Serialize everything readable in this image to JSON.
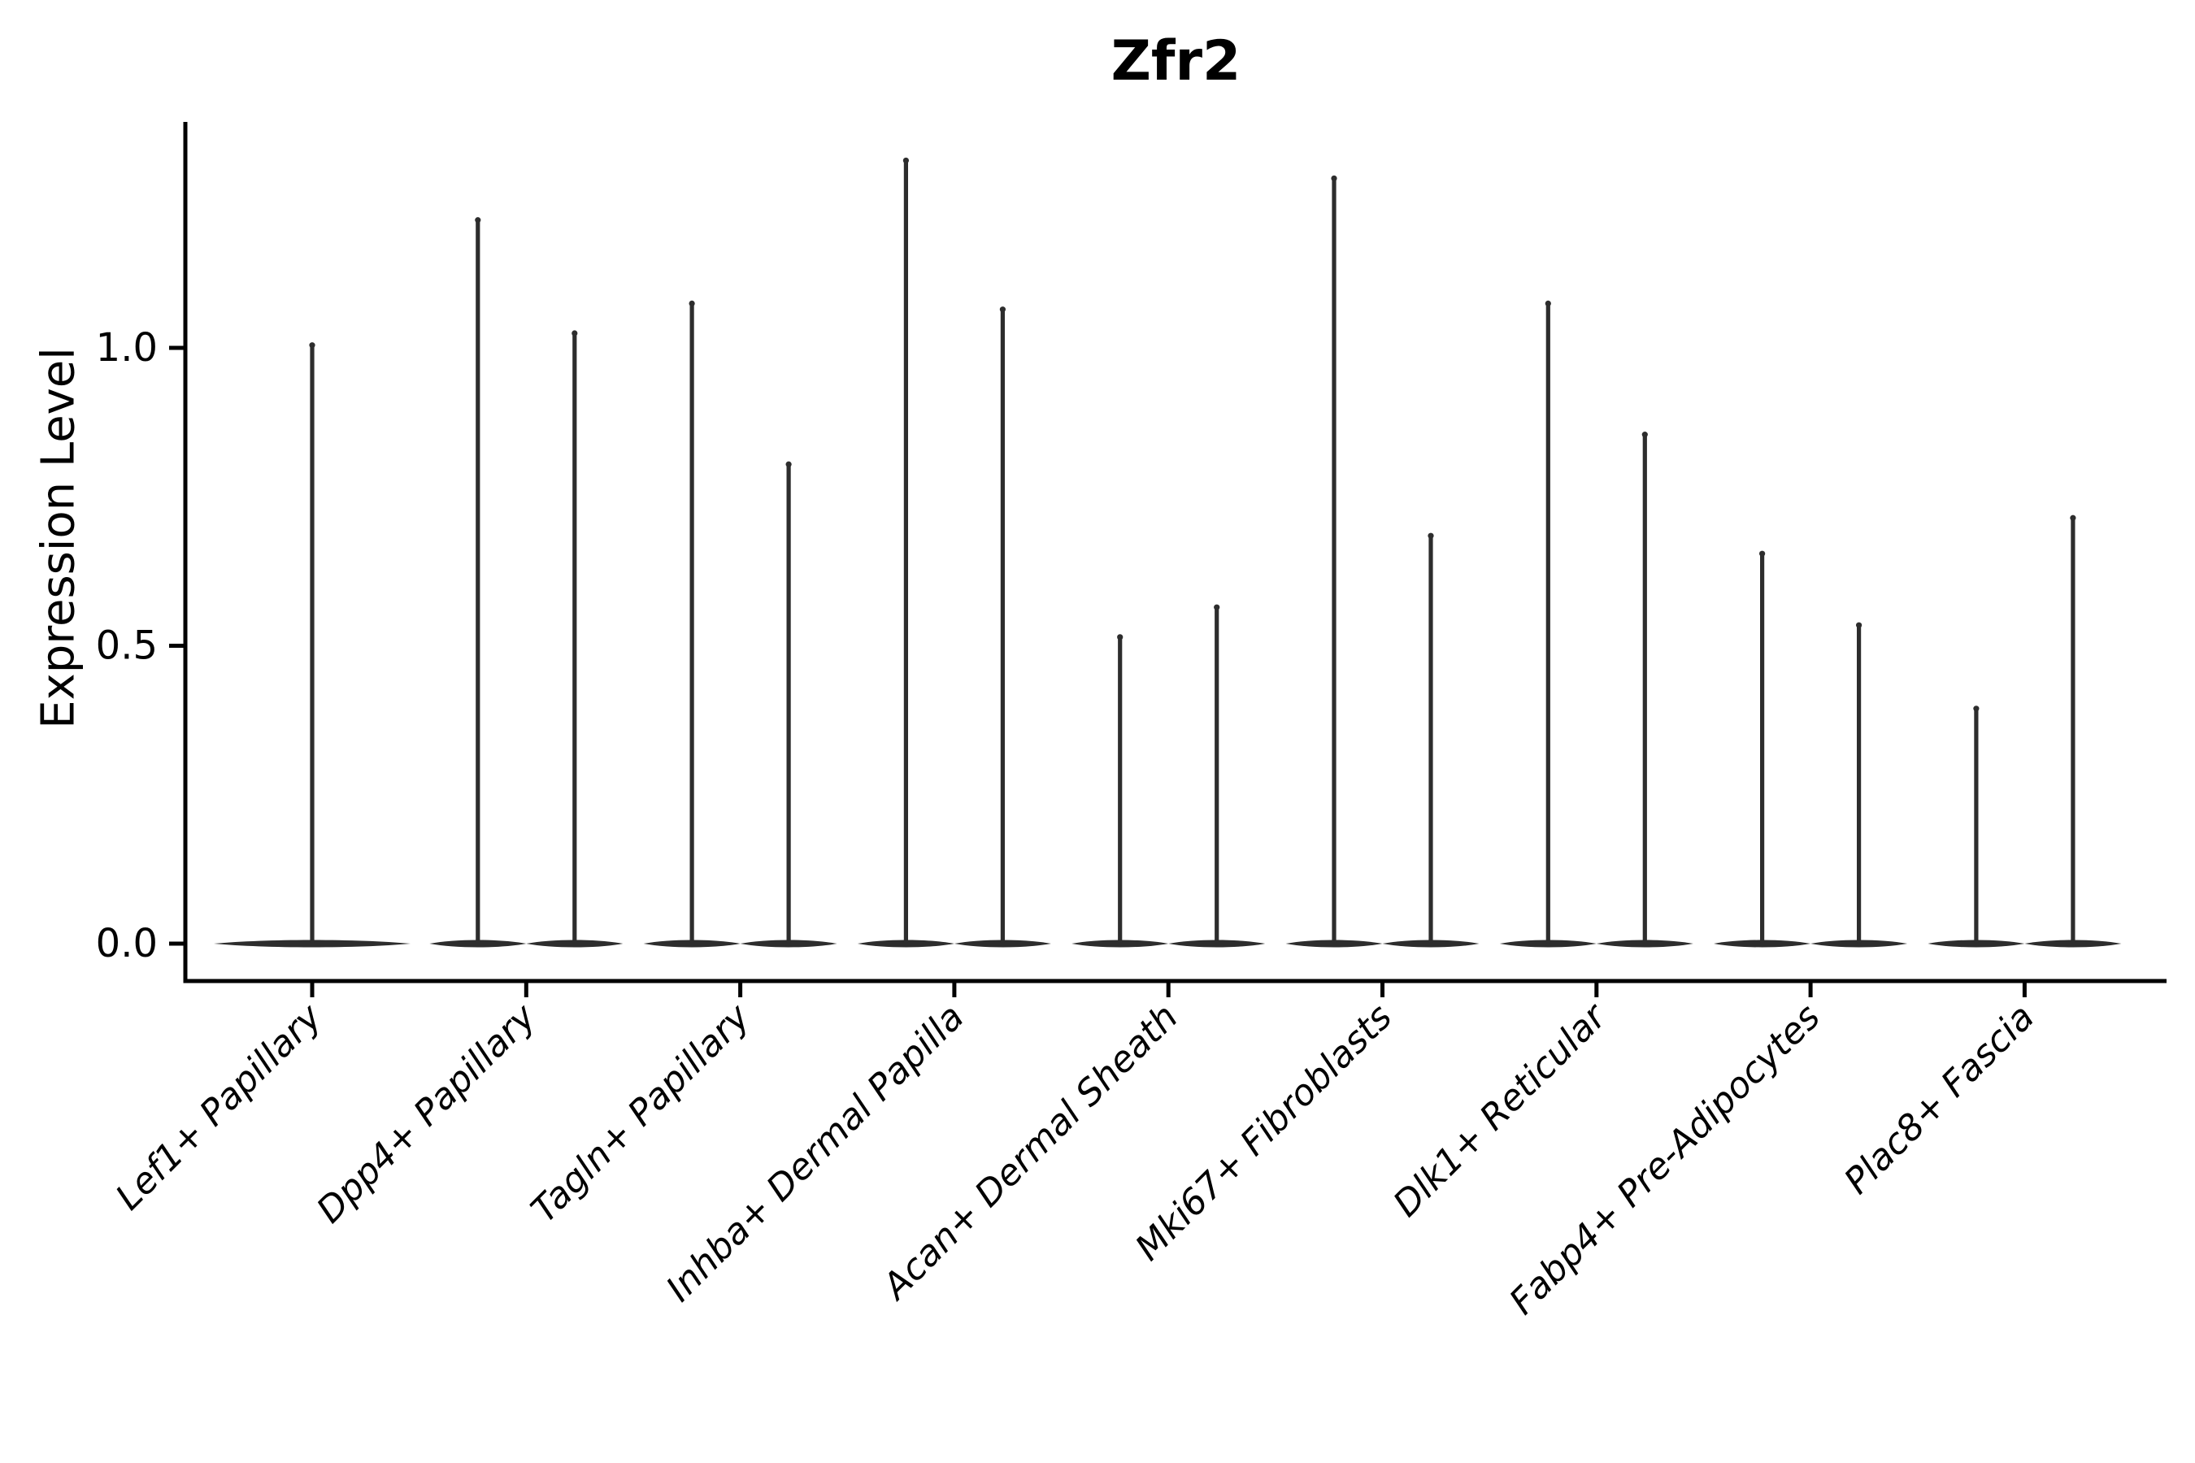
{
  "chart_data": {
    "type": "violin",
    "title": "Zfr2",
    "ylabel": "Expression Level",
    "xlabel": "",
    "yticks": [
      "0.0",
      "0.5",
      "1.0"
    ],
    "ylim": [
      0,
      1.38
    ],
    "grid": false,
    "legend": "none",
    "categories": [
      "Lef1+ Papillary",
      "Dpp4+ Papillary",
      "Tagln+ Papillary",
      "Inhba+ Dermal Papilla",
      "Acan+ Dermal Sheath",
      "Mki67+ Fibroblasts",
      "Dlk1+ Reticular",
      "Fabp4+ Pre-Adipocytes",
      "Plac8+ Fascia"
    ],
    "violins": [
      {
        "category": "Lef1+ Papillary",
        "maxima": [
          1.01
        ]
      },
      {
        "category": "Dpp4+ Papillary",
        "maxima": [
          1.22,
          1.03
        ]
      },
      {
        "category": "Tagln+ Papillary",
        "maxima": [
          1.08,
          0.81
        ]
      },
      {
        "category": "Inhba+ Dermal Papilla",
        "maxima": [
          1.32,
          1.07
        ]
      },
      {
        "category": "Acan+ Dermal Sheath",
        "maxima": [
          0.52,
          0.57
        ]
      },
      {
        "category": "Mki67+ Fibroblasts",
        "maxima": [
          1.29,
          0.69
        ]
      },
      {
        "category": "Dlk1+ Reticular",
        "maxima": [
          1.08,
          0.86
        ]
      },
      {
        "category": "Fabp4+ Pre-Adipocytes",
        "maxima": [
          0.66,
          0.54
        ]
      },
      {
        "category": "Plac8+ Fascia",
        "maxima": [
          0.4,
          0.72
        ]
      }
    ],
    "colors": {
      "violin": "#2d2d2d",
      "axis": "#000000",
      "text": "#000000",
      "background": "#ffffff"
    }
  }
}
